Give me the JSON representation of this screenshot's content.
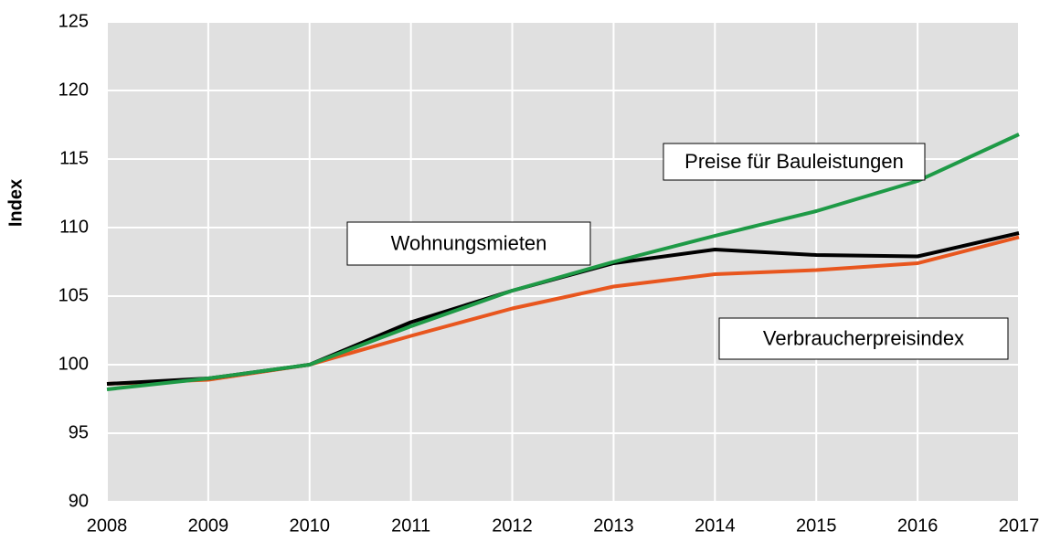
{
  "chart_data": {
    "type": "line",
    "y_label": "Index",
    "x": [
      2008,
      2009,
      2010,
      2011,
      2012,
      2013,
      2014,
      2015,
      2016,
      2017
    ],
    "xlim": [
      2008,
      2017
    ],
    "xticks": [
      2008,
      2009,
      2010,
      2011,
      2012,
      2013,
      2014,
      2015,
      2016,
      2017
    ],
    "ylim": [
      90,
      125
    ],
    "yticks": [
      90,
      95,
      100,
      105,
      110,
      115,
      120,
      125
    ],
    "grid": true,
    "series": [
      {
        "name": "Wohnungsmieten",
        "color": "#000000",
        "label_color": "#000000",
        "values": [
          98.6,
          99.0,
          100,
          103.1,
          105.4,
          107.4,
          108.4,
          108.0,
          107.9,
          109.6
        ]
      },
      {
        "name": "Verbraucherpreisindex",
        "color": "#e8561e",
        "label_color": "#c0461a",
        "values": [
          98.6,
          98.9,
          100,
          102.1,
          104.1,
          105.7,
          106.6,
          106.9,
          107.4,
          109.3
        ]
      },
      {
        "name": "Preise für Bauleistungen",
        "color": "#1e9a46",
        "label_color": "#13803a",
        "values": [
          98.2,
          99.0,
          100,
          102.8,
          105.4,
          107.5,
          109.4,
          111.2,
          113.4,
          116.8
        ]
      }
    ]
  }
}
